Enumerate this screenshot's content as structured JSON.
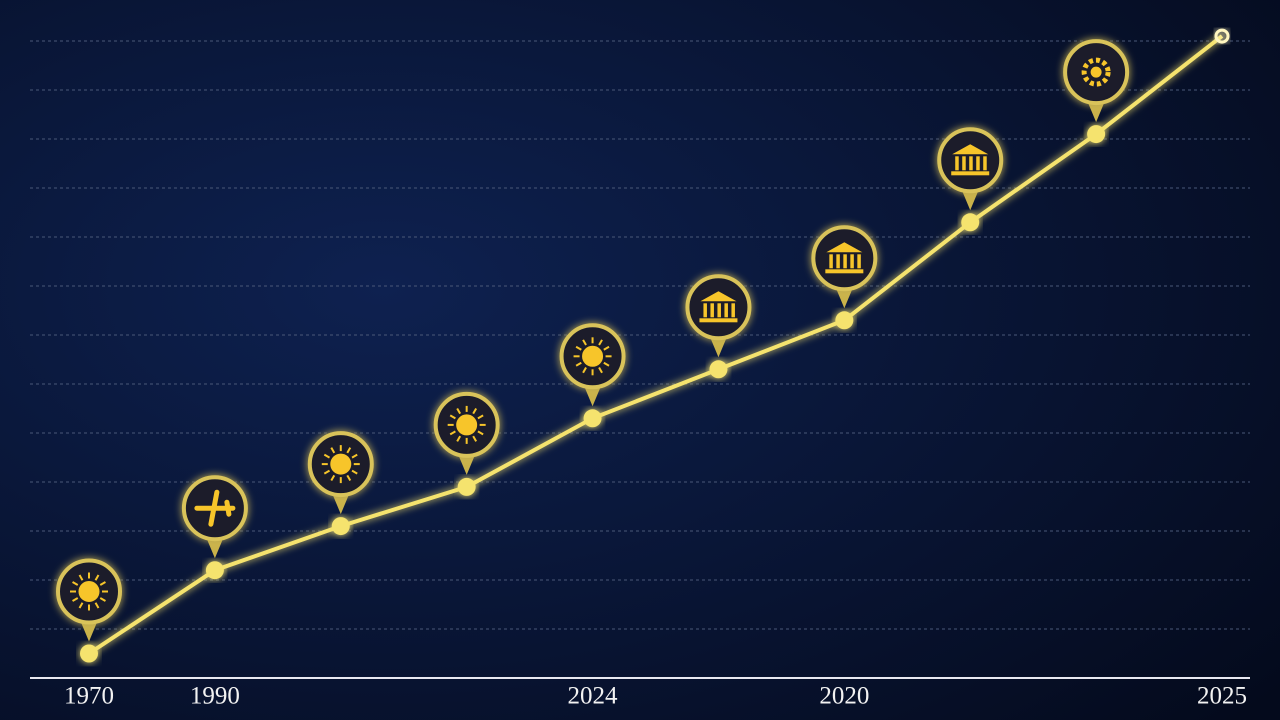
{
  "chart_data": {
    "type": "line",
    "categories": [
      "1970",
      "1990",
      null,
      null,
      "2024",
      null,
      "2020",
      null,
      null,
      "2025"
    ],
    "series": [
      {
        "color": "#f5e36e",
        "values": [
          0.5,
          2.2,
          3.1,
          3.9,
          5.3,
          6.3,
          7.3,
          9.3,
          11.1,
          13.1
        ]
      }
    ],
    "ylim": [
      0,
      13.5
    ],
    "yticks": [
      1,
      2,
      3,
      4,
      5,
      6,
      7,
      8,
      9,
      10,
      11,
      12,
      13
    ],
    "grid": true
  }
}
